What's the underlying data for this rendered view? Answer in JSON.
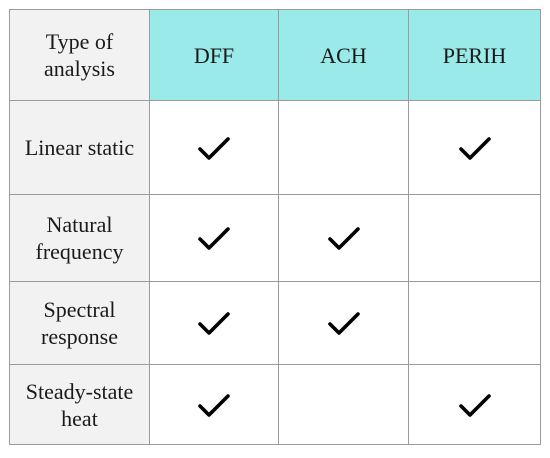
{
  "table": {
    "corner_label": "Type of analysis",
    "columns": [
      "DFF",
      "ACH",
      "PERIH"
    ],
    "rows": [
      {
        "label": "Linear static",
        "checks": [
          true,
          false,
          true
        ]
      },
      {
        "label": "Natural frequency",
        "checks": [
          true,
          true,
          false
        ]
      },
      {
        "label": "Spectral response",
        "checks": [
          true,
          true,
          false
        ]
      },
      {
        "label": "Steady-state heat",
        "checks": [
          true,
          false,
          true
        ]
      }
    ],
    "header_color": "#9aeaea",
    "row_header_color": "#f2f2f2",
    "check_icon": "checkmark-icon"
  }
}
